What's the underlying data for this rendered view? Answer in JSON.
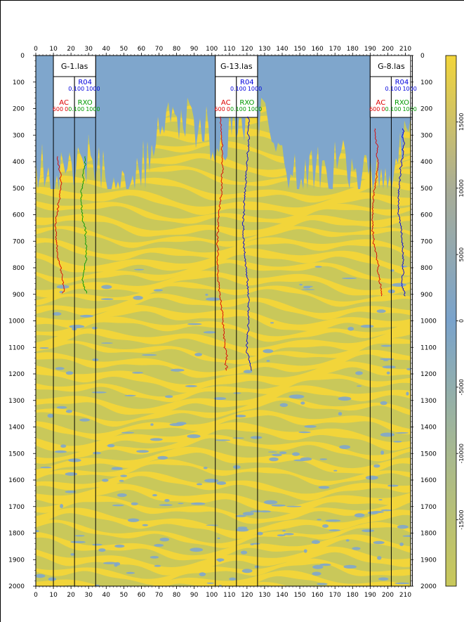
{
  "axes": {
    "x_ticks": [
      0,
      10,
      20,
      30,
      40,
      50,
      60,
      70,
      80,
      90,
      100,
      110,
      120,
      130,
      140,
      150,
      160,
      170,
      180,
      190,
      200,
      210
    ],
    "y_ticks": [
      0,
      100,
      200,
      300,
      400,
      500,
      600,
      700,
      800,
      900,
      1000,
      1100,
      1200,
      1300,
      1400,
      1500,
      1600,
      1700,
      1800,
      1900,
      2000
    ],
    "xlim": [
      0,
      213
    ],
    "ylim": [
      0,
      2000
    ]
  },
  "colorbar": {
    "ticks": [
      -15000,
      -10000,
      -5000,
      0,
      5000,
      10000,
      15000
    ],
    "range": [
      -20000,
      20000
    ],
    "colors": {
      "low": "#c9c85a",
      "mid": "#7aa3cc",
      "high": "#f2d53a"
    }
  },
  "section": {
    "colors": {
      "yellow": "#f2d53a",
      "olive": "#c9c85a",
      "blue": "#7fa6cc"
    }
  },
  "wells": [
    {
      "name": "G-1.las",
      "track_left": 10,
      "track_mid": 22,
      "track_right": 34,
      "top_depth": 380,
      "bottom_depth": 900,
      "curves": [
        {
          "name": "AC",
          "range_left": "600",
          "range_right": "0",
          "color": "#dd0000",
          "track": 1
        },
        {
          "name": "R04",
          "range_left": "0.100",
          "range_right": "1000",
          "color": "#0000dd",
          "track": 2
        },
        {
          "name": "RXO",
          "range_left": "0.100",
          "range_right": "1000",
          "color": "#009900",
          "track": 2
        }
      ]
    },
    {
      "name": "G-13.las",
      "track_left": 102,
      "track_mid": 114,
      "track_right": 126,
      "top_depth": 230,
      "bottom_depth": 1190,
      "curves": [
        {
          "name": "AC",
          "range_left": "600",
          "range_right": "0",
          "color": "#dd0000",
          "track": 1
        },
        {
          "name": "R04",
          "range_left": "0.100",
          "range_right": "1000",
          "color": "#0000dd",
          "track": 2
        },
        {
          "name": "RXO",
          "range_left": "0.100",
          "range_right": "1000",
          "color": "#009900",
          "track": 2
        }
      ]
    },
    {
      "name": "G-8.las",
      "track_left": 190,
      "track_mid": 202,
      "track_right": 214,
      "top_depth": 275,
      "bottom_depth": 910,
      "curves": [
        {
          "name": "AC",
          "range_left": "600",
          "range_right": "0",
          "color": "#dd0000",
          "track": 1
        },
        {
          "name": "R04",
          "range_left": "0.100",
          "range_right": "1000",
          "color": "#0000dd",
          "track": 2
        },
        {
          "name": "RXO",
          "range_left": "0.100",
          "range_right": "1000",
          "color": "#009900",
          "track": 2
        }
      ]
    }
  ]
}
